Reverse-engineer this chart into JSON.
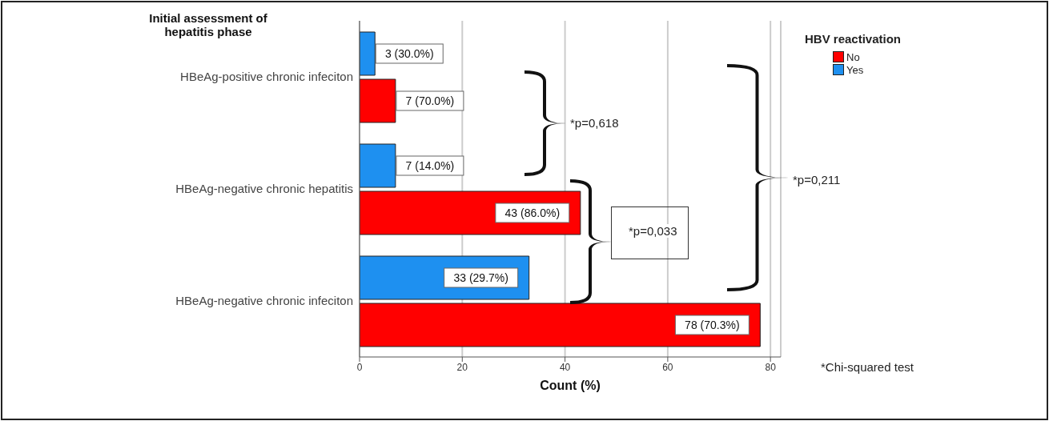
{
  "chart_data": {
    "type": "bar",
    "orientation": "horizontal",
    "ylabel": "Initial assessment of hepatitis phase",
    "xlabel": "Count (%)",
    "legend_title": "HBV reactivation",
    "legend": "top right",
    "grid": "x",
    "categories": [
      "HBeAg-positive chronic infeciton",
      "HBeAg-negative chronic hepatitis",
      "HBeAg-negative chronic infeciton"
    ],
    "series": [
      {
        "name": "No",
        "color": "#ff0000",
        "values": [
          7,
          43,
          78
        ],
        "value_labels": [
          "7 (70.0%)",
          "43 (86.0%)",
          "78 (70.3%)"
        ]
      },
      {
        "name": "Yes",
        "color": "#1e90f0",
        "values": [
          3,
          7,
          33
        ],
        "value_labels": [
          "3 (30.0%)",
          "7 (14.0%)",
          "33 (29.7%)"
        ]
      }
    ],
    "xlim": [
      0,
      82
    ],
    "xticks": [
      0,
      20,
      40,
      60,
      80
    ],
    "annotations": [
      "*p=0,618",
      "*p=0,033",
      "*p=0,211",
      "*Chi-squared test"
    ]
  }
}
